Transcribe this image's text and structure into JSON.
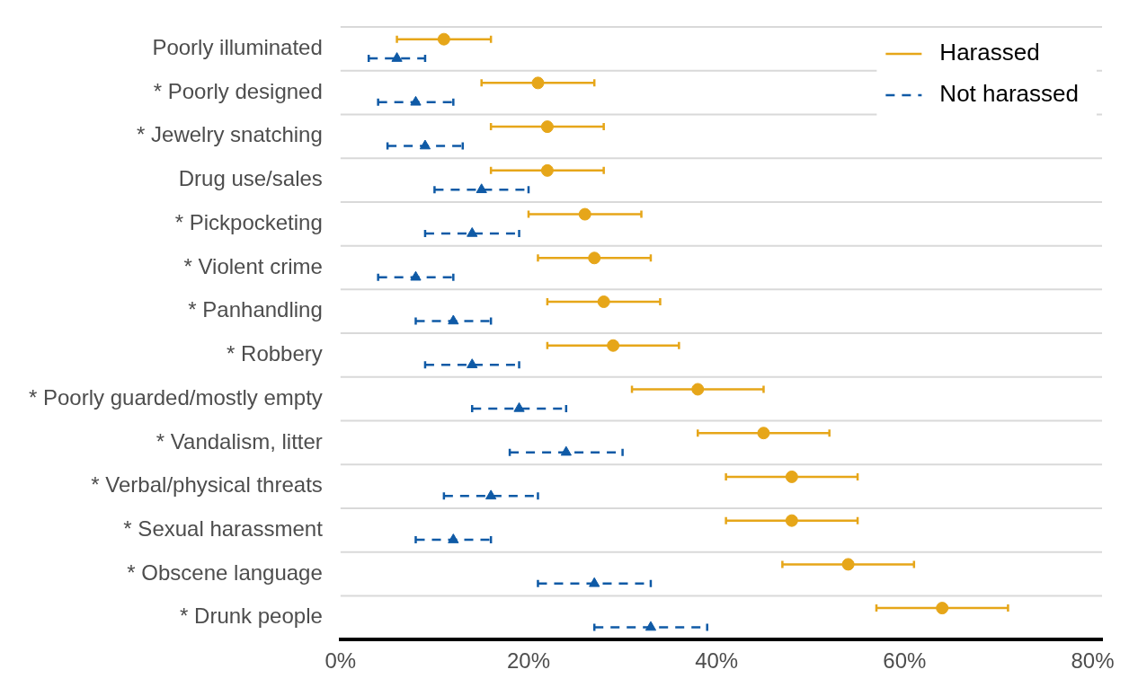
{
  "chart_data": {
    "type": "scatter",
    "orientation": "horizontal",
    "categories": [
      "Poorly illuminated",
      "* Poorly designed",
      "* Jewelry snatching",
      "Drug use/sales",
      "* Pickpocketing",
      "* Violent crime",
      "* Panhandling",
      "* Robbery",
      "* Poorly guarded/mostly empty",
      "* Vandalism, litter",
      "* Verbal/physical threats",
      "* Sexual harassment",
      "* Obscene language",
      "* Drunk people"
    ],
    "series": [
      {
        "name": "Harassed",
        "color": "#e6a619",
        "marker": "circle",
        "line_style": "solid",
        "values": [
          11,
          21,
          22,
          22,
          26,
          27,
          28,
          29,
          38,
          45,
          48,
          48,
          54,
          64
        ],
        "errors": [
          [
            6,
            16
          ],
          [
            15,
            27
          ],
          [
            16,
            28
          ],
          [
            16,
            28
          ],
          [
            20,
            32
          ],
          [
            21,
            33
          ],
          [
            22,
            34
          ],
          [
            22,
            36
          ],
          [
            31,
            45
          ],
          [
            38,
            52
          ],
          [
            41,
            55
          ],
          [
            41,
            55
          ],
          [
            47,
            61
          ],
          [
            57,
            71
          ]
        ]
      },
      {
        "name": "Not harassed",
        "color": "#0f5aa6",
        "marker": "triangle",
        "line_style": "dashed",
        "values": [
          6,
          8,
          9,
          15,
          14,
          8,
          12,
          14,
          19,
          24,
          16,
          12,
          27,
          33
        ],
        "errors": [
          [
            3,
            9
          ],
          [
            4,
            12
          ],
          [
            5,
            13
          ],
          [
            10,
            20
          ],
          [
            9,
            19
          ],
          [
            4,
            12
          ],
          [
            8,
            16
          ],
          [
            9,
            19
          ],
          [
            14,
            24
          ],
          [
            18,
            30
          ],
          [
            11,
            21
          ],
          [
            8,
            16
          ],
          [
            21,
            33
          ],
          [
            27,
            39
          ]
        ]
      }
    ],
    "xlim": [
      0,
      81
    ],
    "xticks": [
      {
        "value": 0,
        "label": "0%"
      },
      {
        "value": 20,
        "label": "20%"
      },
      {
        "value": 40,
        "label": "40%"
      },
      {
        "value": 60,
        "label": "60%"
      },
      {
        "value": 80,
        "label": "80%"
      }
    ],
    "grid": "y",
    "legend": "top right"
  }
}
